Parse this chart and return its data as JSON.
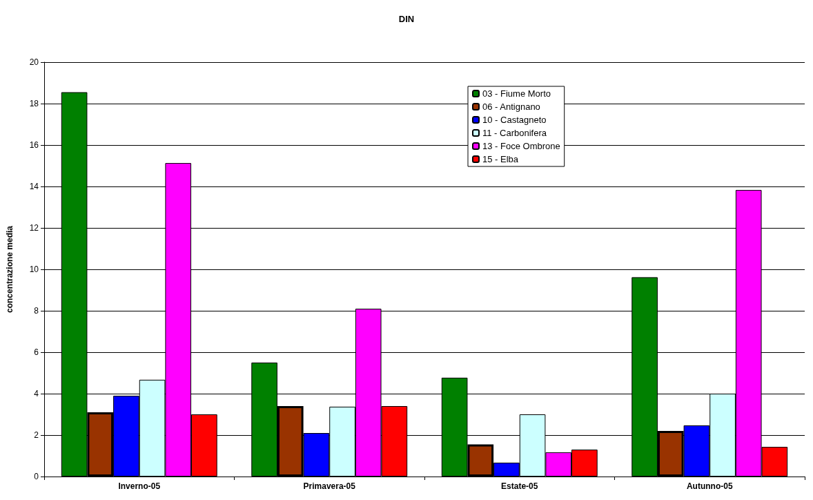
{
  "chart_data": {
    "type": "bar",
    "title": "DIN",
    "ylabel": "concentrazione media",
    "categories": [
      "Inverno-05",
      "Primavera-05",
      "Estate-05",
      "Autunno-05"
    ],
    "series": [
      {
        "name": "03 - Fiume Morto",
        "color": "#008000",
        "values": [
          18.55,
          5.5,
          4.77,
          9.62
        ]
      },
      {
        "name": "06 - Antignano",
        "color": "#993300",
        "values": [
          3.1,
          3.4,
          1.55,
          2.2
        ]
      },
      {
        "name": "10 - Castagneto",
        "color": "#0000ff",
        "values": [
          3.9,
          2.1,
          0.67,
          2.47
        ]
      },
      {
        "name": "11 - Carbonifera",
        "color": "#ccffff",
        "values": [
          4.67,
          3.37,
          3.0,
          4.0
        ]
      },
      {
        "name": "13 - Foce Ombrone",
        "color": "#ff00ff",
        "values": [
          15.13,
          8.1,
          1.17,
          13.83
        ]
      },
      {
        "name": "15 - Elba",
        "color": "#ff0000",
        "values": [
          3.0,
          3.4,
          1.3,
          1.43
        ]
      }
    ],
    "ylim": [
      0,
      20
    ],
    "yticks": [
      0,
      2,
      4,
      6,
      8,
      10,
      12,
      14,
      16,
      18,
      20
    ],
    "grid": "y",
    "legend": "top right"
  }
}
